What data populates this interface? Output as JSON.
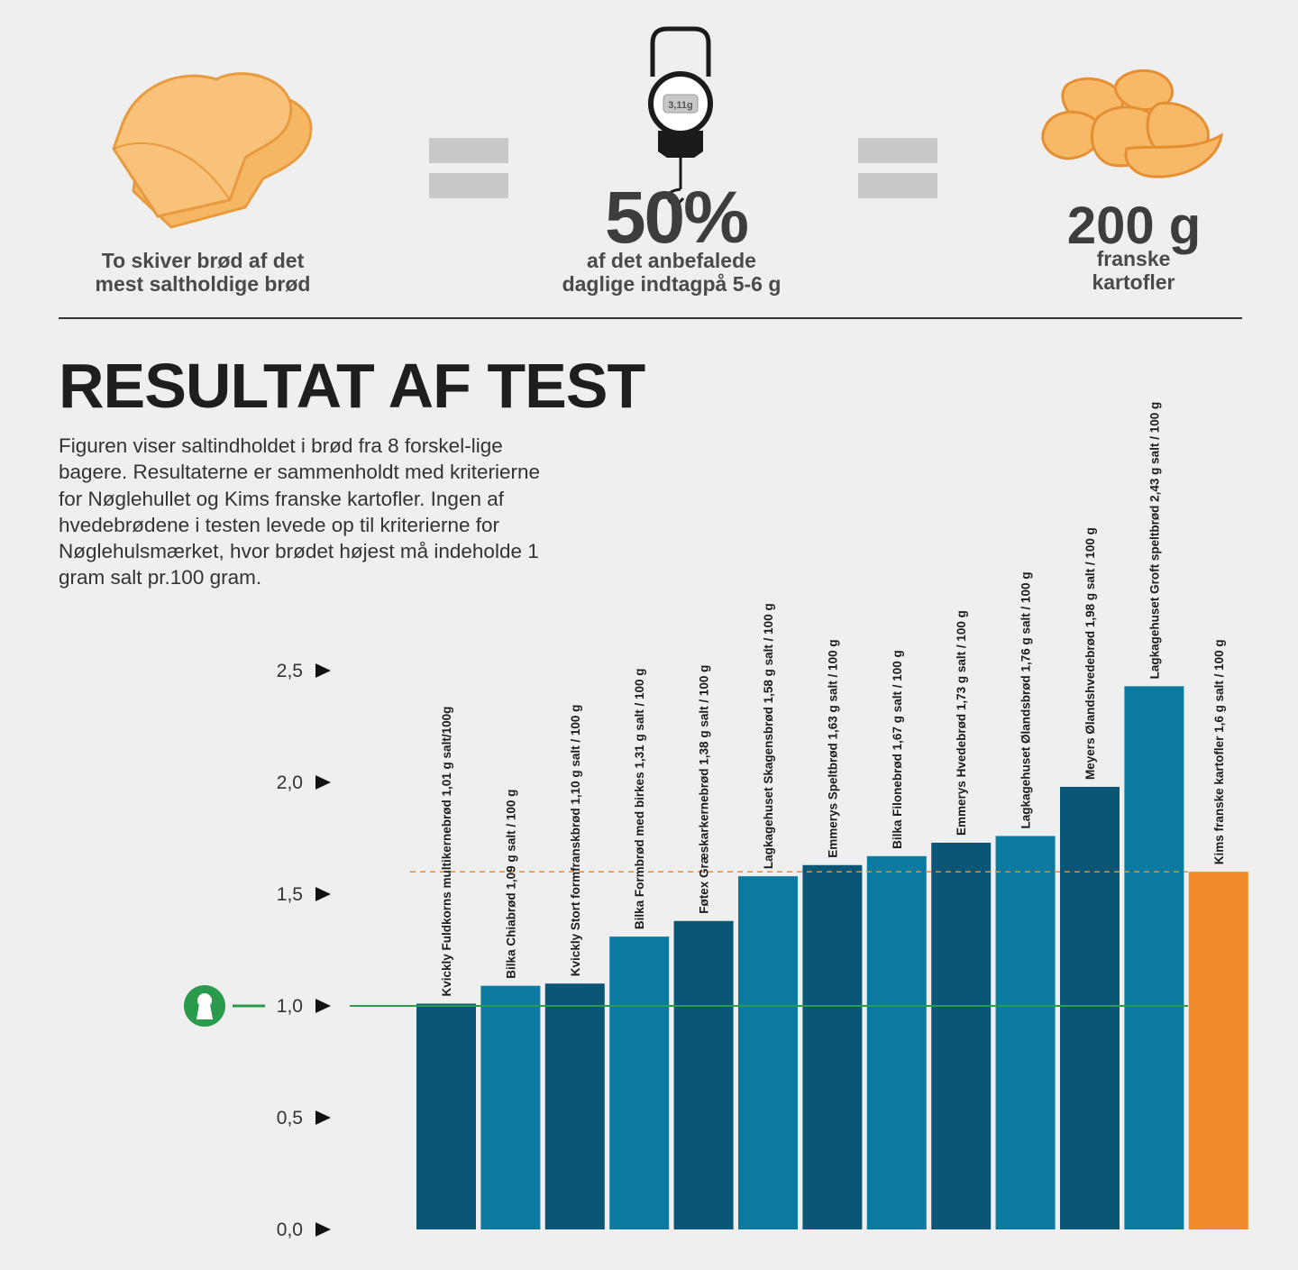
{
  "header": {
    "bread_caption": "To skiver brød af det mest saltholdige brød",
    "scale_reading": "3,11g",
    "percent": "50%",
    "percent_caption": "af det anbefalede daglige indtagpå 5-6 g",
    "chips_amount": "200 g",
    "chips_caption": "franske kartofler"
  },
  "colors": {
    "dark_blue": "#0a5677",
    "mid_blue": "#0a7aa0",
    "orange": "#f08a2a",
    "green": "#2a9a4c",
    "equals": "#c9c9c9"
  },
  "section": {
    "title": "RESULTAT AF TEST",
    "description": "Figuren viser saltindholdet i brød fra 8 forskel-lige bagere. Resultaterne er sammenholdt med kriterierne for Nøglehullet og Kims franske kartofler. Ingen af hvedebrødene i testen levede op til kriterierne for Nøglehulsmærket, hvor brødet højest må indeholde 1 gram salt pr.100 gram."
  },
  "chart_data": {
    "type": "bar",
    "ylim": [
      0,
      2.5
    ],
    "yticks": [
      {
        "value": 0.0,
        "label": "0,0"
      },
      {
        "value": 0.5,
        "label": "0,5"
      },
      {
        "value": 1.0,
        "label": "1,0"
      },
      {
        "value": 1.5,
        "label": "1,5"
      },
      {
        "value": 2.0,
        "label": "2,0"
      },
      {
        "value": 2.5,
        "label": "2,5"
      }
    ],
    "bars": [
      {
        "label": "Kvickly Fuldkorns multikernebrød 1,01 g salt/100g",
        "value": 1.01,
        "color": "#0a5677"
      },
      {
        "label": "Bilka Chiabrød 1,09 g salt / 100 g",
        "value": 1.09,
        "color": "#0a7aa0"
      },
      {
        "label": "Kvickly Stort formfranskbrød 1,10 g salt / 100 g",
        "value": 1.1,
        "color": "#0a5677"
      },
      {
        "label": "Bilka Formbrød med birkes 1,31 g salt / 100 g",
        "value": 1.31,
        "color": "#0a7aa0"
      },
      {
        "label": "Føtex Græskarkernebrød 1,38 g salt / 100 g",
        "value": 1.38,
        "color": "#0a5677"
      },
      {
        "label": "Lagkagehuset Skagensbrød 1,58 g salt / 100 g",
        "value": 1.58,
        "color": "#0a7aa0"
      },
      {
        "label": "Emmerys Speltbrød 1,63 g salt / 100 g",
        "value": 1.63,
        "color": "#0a5677"
      },
      {
        "label": "Bilka Filonebrød 1,67 g salt / 100 g",
        "value": 1.67,
        "color": "#0a7aa0"
      },
      {
        "label": "Emmerys Hvedebrød 1,73 g salt / 100 g",
        "value": 1.73,
        "color": "#0a5677"
      },
      {
        "label": "Lagkagehuset Ølandsbrød 1,76 g salt / 100 g",
        "value": 1.76,
        "color": "#0a7aa0"
      },
      {
        "label": "Meyers Ølandshvedebrød 1,98 g salt / 100 g",
        "value": 1.98,
        "color": "#0a5677"
      },
      {
        "label": "Lagkagehuset Groft speltbrød 2,43 g salt / 100 g",
        "value": 2.43,
        "color": "#0a7aa0"
      },
      {
        "label": "Kims franske kartofler 1,6 g salt / 100 g",
        "value": 1.6,
        "color": "#f08a2a"
      }
    ],
    "reference_lines": [
      {
        "value": 1.0,
        "style": "solid",
        "color": "#2a9a4c"
      },
      {
        "value": 1.6,
        "style": "dashed",
        "color": "#f08a2a"
      }
    ],
    "grid": false,
    "legend": "none"
  }
}
